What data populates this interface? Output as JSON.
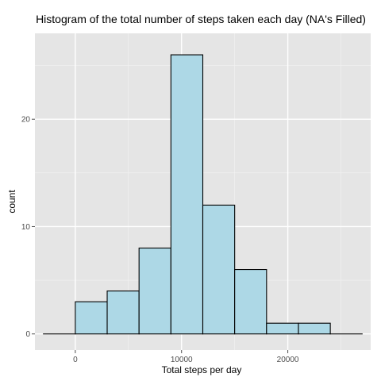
{
  "chart_data": {
    "type": "histogram",
    "title": "Histogram of the total number of steps taken each day (NA's Filled)",
    "xlabel": "Total steps per day",
    "ylabel": "count",
    "xlim": [
      -3800,
      27800
    ],
    "ylim": [
      -1.5,
      28
    ],
    "x_ticks": [
      0,
      10000,
      20000
    ],
    "x_tick_labels": [
      "0",
      "10000",
      "20000"
    ],
    "y_ticks": [
      0,
      10,
      20
    ],
    "y_tick_labels": [
      "0",
      "10",
      "20"
    ],
    "bins": [
      {
        "start": -3000,
        "end": 0,
        "count": 0
      },
      {
        "start": 0,
        "end": 3000,
        "count": 3
      },
      {
        "start": 3000,
        "end": 6000,
        "count": 4
      },
      {
        "start": 6000,
        "end": 9000,
        "count": 8
      },
      {
        "start": 9000,
        "end": 12000,
        "count": 26
      },
      {
        "start": 12000,
        "end": 15000,
        "count": 12
      },
      {
        "start": 15000,
        "end": 18000,
        "count": 6
      },
      {
        "start": 18000,
        "end": 21000,
        "count": 1
      },
      {
        "start": 21000,
        "end": 24000,
        "count": 1
      },
      {
        "start": 24000,
        "end": 27000,
        "count": 0
      }
    ],
    "bar_fill": "#add8e6",
    "bar_stroke": "#000000",
    "panel_background": "#e5e5e5",
    "grid_major": "#ffffff",
    "grid_minor": "#f2f2f2",
    "grid": true
  }
}
